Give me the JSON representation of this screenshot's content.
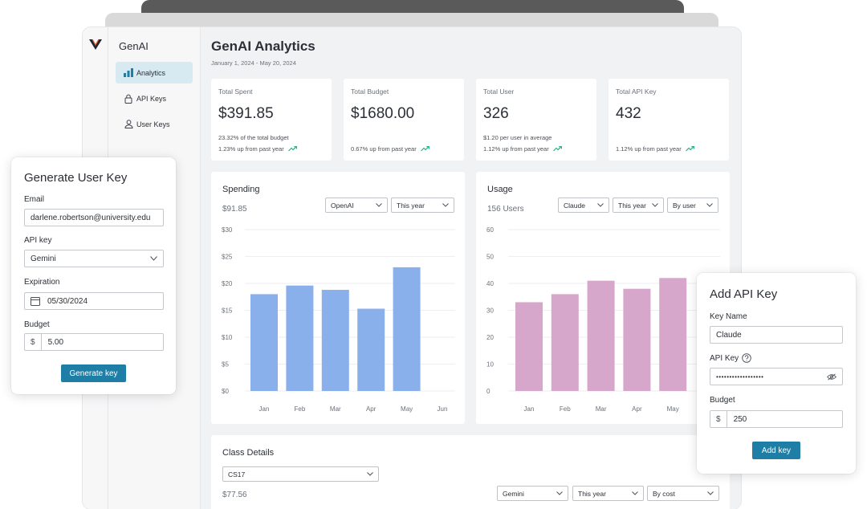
{
  "app": {
    "name": "GenAI"
  },
  "nav": [
    {
      "label": "Analytics",
      "icon": "bar-chart-icon",
      "active": true
    },
    {
      "label": "API Keys",
      "icon": "lock-icon",
      "active": false
    },
    {
      "label": "User Keys",
      "icon": "user-icon",
      "active": false
    }
  ],
  "page": {
    "title": "GenAI Analytics",
    "date_range": "January 1, 2024 - May 20, 2024"
  },
  "stats": [
    {
      "label": "Total Spent",
      "value": "$391.85",
      "line1": "23.32% of the total budget",
      "line2": "1.23% up from past year"
    },
    {
      "label": "Total Budget",
      "value": "$1680.00",
      "line1": "",
      "line2": "0.67% up from past year"
    },
    {
      "label": "Total User",
      "value": "326",
      "line1": "$1.20 per user in average",
      "line2": "1.12% up from past year"
    },
    {
      "label": "Total API Key",
      "value": "432",
      "line1": "",
      "line2": "1.12% up from past year"
    }
  ],
  "spending": {
    "title": "Spending",
    "summary": "$91.85",
    "filters": [
      "OpenAI",
      "This year"
    ]
  },
  "usage": {
    "title": "Usage",
    "summary": "156 Users",
    "filters": [
      "Claude",
      "This year",
      "By user"
    ]
  },
  "class_details": {
    "title": "Class Details",
    "class_select": "CS17",
    "summary": "$77.56",
    "filters": [
      "Gemini",
      "This year",
      "By cost"
    ]
  },
  "generate_user_key": {
    "title": "Generate User Key",
    "email_label": "Email",
    "email_value": "darlene.robertson@university.edu",
    "api_key_label": "API key",
    "api_key_value": "Gemini",
    "expiration_label": "Expiration",
    "expiration_value": "05/30/2024",
    "budget_label": "Budget",
    "budget_prefix": "$",
    "budget_value": "5.00",
    "submit_label": "Generate key"
  },
  "add_api_key": {
    "title": "Add API Key",
    "key_name_label": "Key Name",
    "key_name_value": "Claude",
    "api_key_label": "API Key",
    "api_key_value": "••••••••••••••••••",
    "budget_label": "Budget",
    "budget_prefix": "$",
    "budget_value": "250",
    "submit_label": "Add key"
  },
  "colors": {
    "accent": "#1f7ea5",
    "spending_bar": "#8ab0ec",
    "usage_bar": "#d6a6cb",
    "trend": "#2bb585"
  },
  "chart_data": [
    {
      "type": "bar",
      "title": "Spending",
      "categories": [
        "Jan",
        "Feb",
        "Mar",
        "Apr",
        "May",
        "Jun"
      ],
      "values": [
        18,
        19.6,
        18.8,
        15.3,
        23,
        null
      ],
      "ylim": [
        0,
        30
      ],
      "yticks": [
        "$0",
        "$5",
        "$10",
        "$15",
        "$20",
        "$25",
        "$30"
      ],
      "grid": true
    },
    {
      "type": "bar",
      "title": "Usage",
      "categories": [
        "Jan",
        "Feb",
        "Mar",
        "Apr",
        "May"
      ],
      "values": [
        33,
        36,
        41,
        38,
        42
      ],
      "ylim": [
        0,
        60
      ],
      "yticks": [
        "0",
        "10",
        "20",
        "30",
        "40",
        "50",
        "60"
      ],
      "grid": true
    }
  ]
}
